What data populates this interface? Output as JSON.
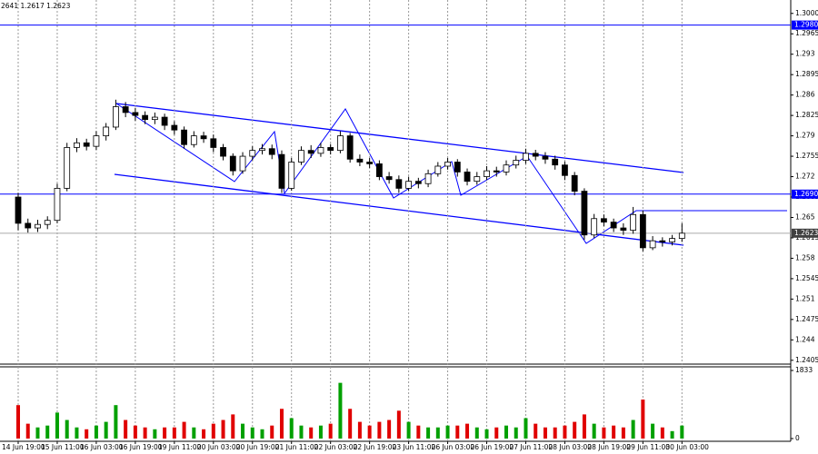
{
  "chart_data": {
    "type": "candlestick",
    "info": "2641 1.2617 1.2623",
    "categories": [
      "14 Jun 19:00",
      null,
      null,
      null,
      "15 Jun 11:00",
      null,
      null,
      null,
      "16 Jun 03:00",
      null,
      null,
      null,
      "16 Jun 19:00",
      null,
      null,
      null,
      "19 Jun 11:00",
      null,
      null,
      null,
      "20 Jun 03:00",
      null,
      null,
      null,
      "20 Jun 19:00",
      null,
      null,
      null,
      "21 Jun 11:00",
      null,
      null,
      null,
      "22 Jun 03:00",
      null,
      null,
      null,
      "22 Jun 19:00",
      null,
      null,
      null,
      "23 Jun 11:00",
      null,
      null,
      null,
      "26 Jun 03:00",
      null,
      null,
      null,
      "26 Jun 19:00",
      null,
      null,
      null,
      "27 Jun 11:00",
      null,
      null,
      null,
      "28 Jun 03:00",
      null,
      null,
      null,
      "28 Jun 19:00",
      null,
      null,
      null,
      "29 Jun 11:00",
      null,
      null,
      null,
      "30 Jun 03:00"
    ],
    "open": [
      1.2685,
      1.264,
      1.2632,
      1.2638,
      1.2645,
      1.27,
      1.277,
      1.2778,
      1.2772,
      1.279,
      1.2805,
      1.284,
      1.283,
      1.2825,
      1.2818,
      1.2822,
      1.2808,
      1.28,
      1.2775,
      1.279,
      1.2785,
      1.277,
      1.2755,
      1.273,
      1.2755,
      1.2765,
      1.2768,
      1.2758,
      1.27,
      1.2745,
      1.2765,
      1.276,
      1.277,
      1.2765,
      1.279,
      1.275,
      1.2745,
      1.2742,
      1.272,
      1.2715,
      1.27,
      1.2712,
      1.2708,
      1.2725,
      1.2738,
      1.2745,
      1.2728,
      1.2712,
      1.272,
      1.273,
      1.2728,
      1.274,
      1.2748,
      1.276,
      1.2755,
      1.275,
      1.274,
      1.2722,
      1.2695,
      1.262,
      1.2648,
      1.2642,
      1.2632,
      1.2628,
      1.2655,
      1.2598,
      1.261,
      1.2608,
      1.2614
    ],
    "high": [
      1.2692,
      1.2648,
      1.2646,
      1.2652,
      1.2708,
      1.2778,
      1.2786,
      1.2785,
      1.2798,
      1.2812,
      1.2852,
      1.2848,
      1.2838,
      1.2832,
      1.283,
      1.2828,
      1.2815,
      1.2806,
      1.2798,
      1.2797,
      1.2792,
      1.2776,
      1.276,
      1.2762,
      1.2772,
      1.2776,
      1.2775,
      1.2765,
      1.2752,
      1.2772,
      1.2774,
      1.2778,
      1.2776,
      1.2798,
      1.2795,
      1.2758,
      1.2752,
      1.2748,
      1.2728,
      1.2722,
      1.272,
      1.2718,
      1.2732,
      1.2745,
      1.2752,
      1.275,
      1.2734,
      1.2728,
      1.2738,
      1.2737,
      1.2748,
      1.2756,
      1.2768,
      1.2766,
      1.2762,
      1.2756,
      1.2746,
      1.2728,
      1.27,
      1.2656,
      1.2655,
      1.2648,
      1.264,
      1.2668,
      1.2662,
      1.2618,
      1.2616,
      1.262,
      1.264
    ],
    "low": [
      1.2628,
      1.2624,
      1.2625,
      1.263,
      1.264,
      1.2695,
      1.2762,
      1.2765,
      1.2766,
      1.2782,
      1.28,
      1.2822,
      1.2816,
      1.281,
      1.281,
      1.28,
      1.2792,
      1.2768,
      1.277,
      1.2778,
      1.2762,
      1.2748,
      1.2722,
      1.2725,
      1.2748,
      1.2758,
      1.275,
      1.2692,
      1.2696,
      1.274,
      1.2752,
      1.2754,
      1.2758,
      1.276,
      1.2744,
      1.2738,
      1.2735,
      1.2714,
      1.2708,
      1.2692,
      1.2695,
      1.27,
      1.2702,
      1.272,
      1.2732,
      1.272,
      1.2705,
      1.2706,
      1.2714,
      1.272,
      1.2722,
      1.2734,
      1.2742,
      1.2748,
      1.2742,
      1.2732,
      1.2714,
      1.2688,
      1.2612,
      1.2615,
      1.2635,
      1.2625,
      1.262,
      1.2622,
      1.2592,
      1.2594,
      1.26,
      1.2602,
      1.2608
    ],
    "close": [
      1.264,
      1.2632,
      1.2638,
      1.2645,
      1.27,
      1.277,
      1.2778,
      1.2772,
      1.279,
      1.2805,
      1.284,
      1.283,
      1.2825,
      1.2818,
      1.2822,
      1.2808,
      1.28,
      1.2775,
      1.279,
      1.2785,
      1.277,
      1.2755,
      1.273,
      1.2755,
      1.2765,
      1.2768,
      1.2758,
      1.27,
      1.2745,
      1.2765,
      1.276,
      1.277,
      1.2765,
      1.279,
      1.275,
      1.2745,
      1.2742,
      1.272,
      1.2715,
      1.27,
      1.2712,
      1.2708,
      1.2725,
      1.2738,
      1.2745,
      1.2728,
      1.2712,
      1.272,
      1.273,
      1.2728,
      1.274,
      1.2748,
      1.276,
      1.2755,
      1.275,
      1.274,
      1.2722,
      1.2695,
      1.262,
      1.2648,
      1.2642,
      1.2632,
      1.2628,
      1.2655,
      1.2598,
      1.261,
      1.2608,
      1.2614,
      1.2623
    ],
    "ylim": [
      1.24,
      1.3023
    ],
    "yticks": [
      {
        "value": 1.3,
        "label": "1.3000"
      },
      1.2965,
      1.293,
      1.2895,
      1.286,
      1.2825,
      1.279,
      1.2755,
      1.272,
      1.2685,
      1.265,
      1.2615,
      1.258,
      1.2545,
      1.251,
      1.2475,
      1.244,
      1.2405
    ],
    "hlines": [
      {
        "value": 1.298,
        "label": "1.2980"
      },
      {
        "value": 1.269,
        "label": "1.2690"
      }
    ],
    "current": 1.2623,
    "line_color": "#0000ff",
    "volume": {
      "values": [
        900,
        400,
        300,
        350,
        700,
        500,
        300,
        250,
        350,
        450,
        900,
        500,
        350,
        300,
        250,
        300,
        300,
        450,
        300,
        250,
        400,
        500,
        650,
        400,
        300,
        250,
        350,
        800,
        550,
        350,
        300,
        350,
        400,
        1500,
        800,
        450,
        350,
        450,
        500,
        750,
        450,
        350,
        300,
        300,
        350,
        350,
        400,
        300,
        250,
        300,
        350,
        300,
        550,
        400,
        300,
        300,
        350,
        450,
        650,
        400,
        300,
        350,
        300,
        500,
        1050,
        400,
        300,
        200,
        350
      ],
      "ylim": [
        0,
        1833
      ],
      "yticks": [
        1833,
        0
      ],
      "up_color": "#00a000",
      "down_color": "#e00000"
    }
  }
}
